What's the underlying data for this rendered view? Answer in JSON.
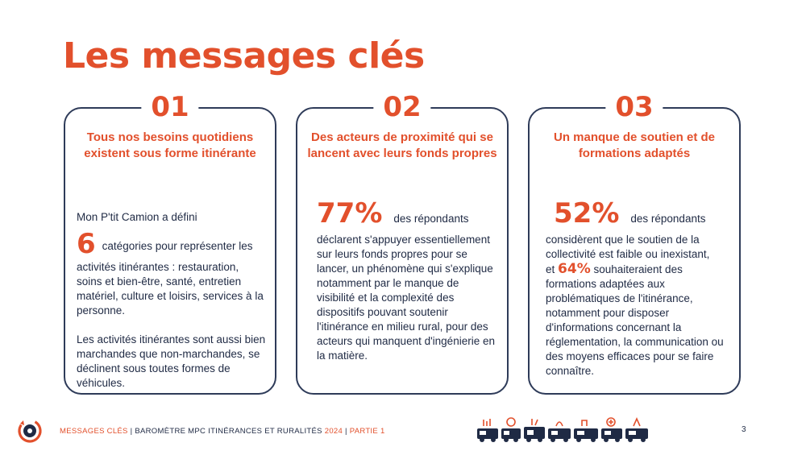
{
  "title": "Les messages clés",
  "cards": [
    {
      "num": "01",
      "heading": "Tous nos besoins quotidiens existent sous forme itinérante",
      "intro": "Mon P'tit Camion a défini",
      "stat": "6",
      "stat_text": "catégories pour représenter les activités itinérantes : restauration, soins et bien-être, santé, entretien matériel, culture et loisirs, services à la personne.",
      "paragraph2": "Les activités itinérantes sont aussi bien marchandes que non-marchandes, se déclinent sous toutes formes de véhicules."
    },
    {
      "num": "02",
      "heading": "Des acteurs de proximité qui se lancent avec leurs fonds propres",
      "stat": "77%",
      "stat_label": "des répondants",
      "text": "déclarent s'appuyer essentiellement sur leurs fonds propres pour se lancer, un phénomène qui s'explique notamment par le manque de visibilité et la complexité des dispositifs pouvant soutenir l'itinérance en milieu rural, pour des acteurs qui manquent d'ingénierie en la matière."
    },
    {
      "num": "03",
      "heading": "Un manque de soutien et de formations adaptés",
      "stat": "52%",
      "stat_label": "des répondants",
      "text1": "considèrent que le soutien de la collectivité est faible ou inexistant,",
      "text2_prefix": "et",
      "stat2": "64%",
      "text2": "souhaiteraient des formations adaptées aux problématiques de l'itinérance, notamment pour disposer d'informations concernant la réglementation, la communication ou des moyens efficaces pour se faire connaître."
    }
  ],
  "footer": {
    "section": "MESSAGES CLÉS",
    "separator": "|",
    "report": "BAROMÈTRE MPC ITINÉRANCES ET RURALITÉS",
    "year": "2024",
    "part": "PARTIE 1",
    "page": "3"
  },
  "colors": {
    "accent": "#e2502c",
    "navy": "#2e3b59"
  },
  "icons": [
    "mpc-logo-icon",
    "vehicles-illustration-icon"
  ]
}
